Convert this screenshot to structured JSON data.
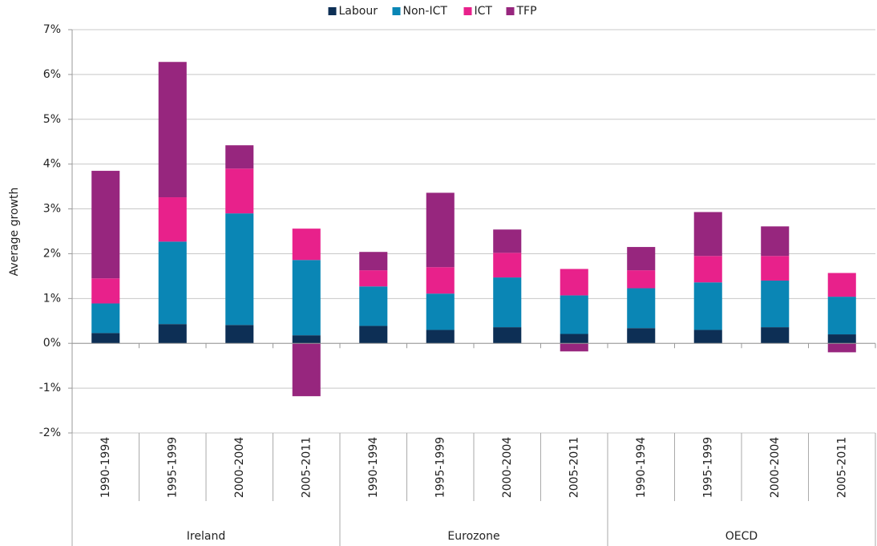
{
  "chart_data": {
    "type": "stacked-bar",
    "y_label": "Average growth",
    "groups": [
      {
        "name": "Ireland",
        "categories": [
          "1990-1994",
          "1995-1999",
          "2000-2004",
          "2005-2011"
        ]
      },
      {
        "name": "Eurozone",
        "categories": [
          "1990-1994",
          "1995-1999",
          "2000-2004",
          "2005-2011"
        ]
      },
      {
        "name": "OECD",
        "categories": [
          "1990-1994",
          "1995-1999",
          "2000-2004",
          "2005-2011"
        ]
      }
    ],
    "series": [
      {
        "name": "Labour",
        "color": "#0d2f55",
        "values": [
          0.23,
          0.43,
          0.41,
          0.18,
          0.39,
          0.3,
          0.36,
          0.21,
          0.34,
          0.3,
          0.36,
          0.2
        ]
      },
      {
        "name": "Non-ICT",
        "color": "#0a86b5",
        "values": [
          0.66,
          1.84,
          2.49,
          1.68,
          0.88,
          0.81,
          1.11,
          0.86,
          0.89,
          1.06,
          1.04,
          0.84
        ]
      },
      {
        "name": "ICT",
        "color": "#e8218b",
        "values": [
          0.56,
          0.99,
          1.0,
          0.7,
          0.36,
          0.59,
          0.55,
          0.59,
          0.4,
          0.59,
          0.55,
          0.53
        ]
      },
      {
        "name": "TFP",
        "color": "#97267e",
        "values": [
          2.4,
          3.02,
          0.52,
          -1.18,
          0.41,
          1.66,
          0.52,
          -0.18,
          0.52,
          0.98,
          0.66,
          -0.2
        ]
      }
    ],
    "ylim": [
      -2,
      7
    ],
    "yticks": [
      {
        "value": -2,
        "label": "-2%"
      },
      {
        "value": -1,
        "label": "-1%"
      },
      {
        "value": 0,
        "label": "0%"
      },
      {
        "value": 1,
        "label": "1%"
      },
      {
        "value": 2,
        "label": "2%"
      },
      {
        "value": 3,
        "label": "3%"
      },
      {
        "value": 4,
        "label": "4%"
      },
      {
        "value": 5,
        "label": "5%"
      },
      {
        "value": 6,
        "label": "6%"
      },
      {
        "value": 7,
        "label": "7%"
      }
    ],
    "grid": true,
    "legend": "top"
  }
}
